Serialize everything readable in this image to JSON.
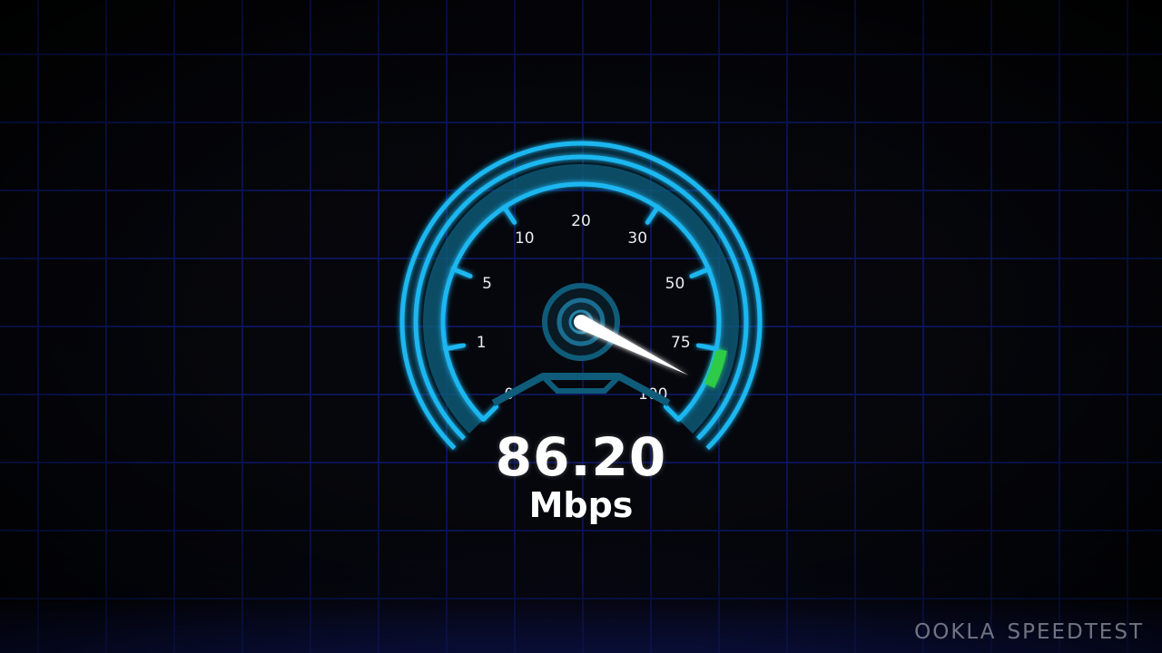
{
  "speedometer": {
    "value": 86.2,
    "value_text": "86.20",
    "unit": "Mbps",
    "scale_labels": [
      "0",
      "1",
      "5",
      "10",
      "20",
      "30",
      "50",
      "75",
      "100"
    ],
    "colors": {
      "arc": "#1fb6f0",
      "arc_dim": "#0e5c7a",
      "active": "#2fcb4a",
      "needle": "#ffffff",
      "grid": "#0b1763"
    }
  },
  "brand": {
    "ookla": "OOKLA",
    "speedtest": "SPEEDTEST"
  }
}
